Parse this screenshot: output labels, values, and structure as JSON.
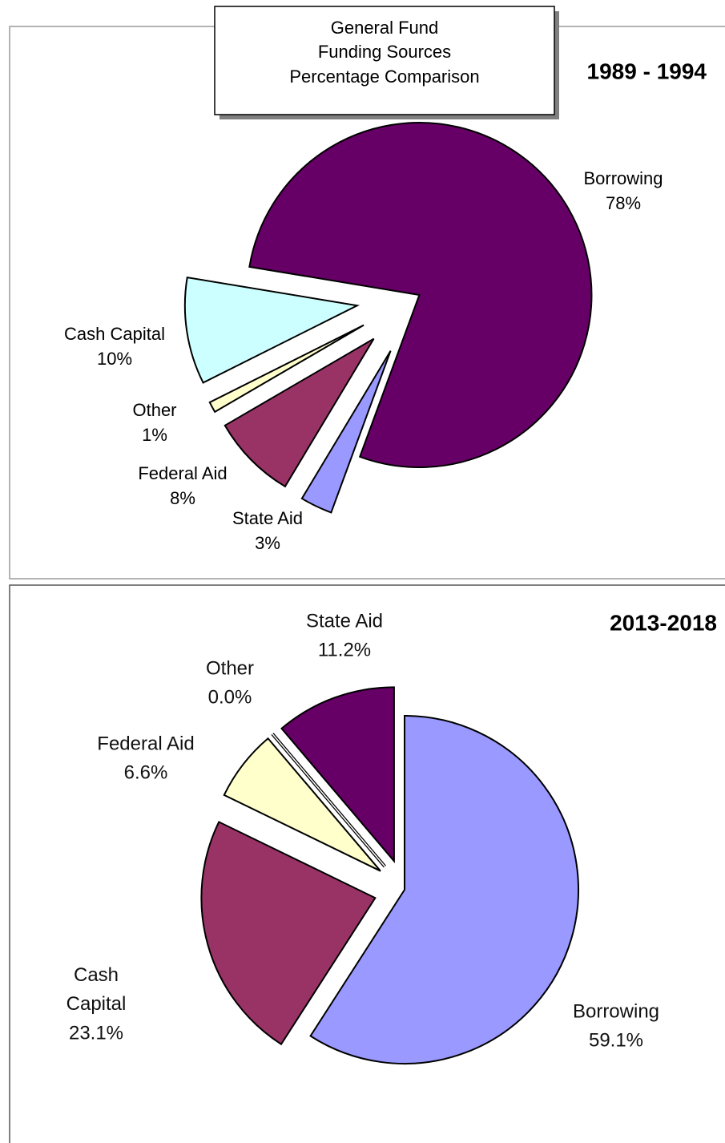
{
  "header": {
    "lines": [
      "General Fund",
      "Funding Sources",
      "Percentage Comparison"
    ]
  },
  "chart_data": [
    {
      "type": "pie",
      "title": "1989 - 1994",
      "categories": [
        "Borrowing",
        "State Aid",
        "Federal Aid",
        "Other",
        "Cash Capital"
      ],
      "values": [
        78,
        3,
        8,
        1,
        10
      ],
      "value_labels": [
        "78%",
        "3%",
        "8%",
        "1%",
        "10%"
      ],
      "colors": [
        "#660066",
        "#9999ff",
        "#993366",
        "#ffffcc",
        "#ccffff"
      ]
    },
    {
      "type": "pie",
      "title": "2013-2018",
      "categories": [
        "Borrowing",
        "Cash Capital",
        "Federal Aid",
        "Other",
        "State Aid"
      ],
      "values": [
        59.1,
        23.1,
        6.6,
        0.0,
        11.2
      ],
      "value_labels": [
        "59.1%",
        "23.1%",
        "6.6%",
        "0.0%",
        "11.2%"
      ],
      "colors": [
        "#9999ff",
        "#993366",
        "#ffffcc",
        "#ffffff",
        "#660066"
      ]
    }
  ]
}
